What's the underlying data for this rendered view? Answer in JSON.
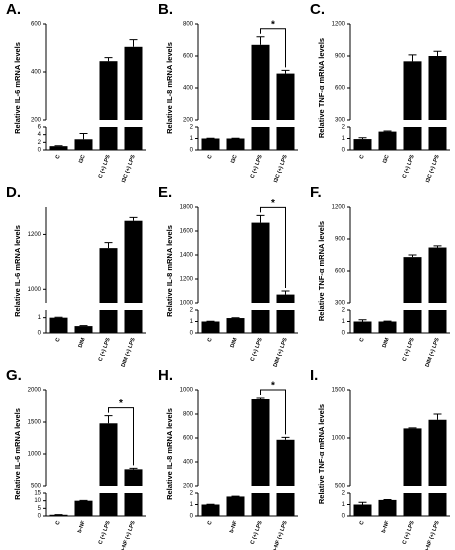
{
  "chart_data": [
    {
      "type": "bar",
      "label": "A.",
      "y_label": "Relative IL-6 mRNA levels",
      "categories": [
        "C",
        "I3C",
        "C (+) LPS",
        "I3C (+) LPS"
      ],
      "values": [
        1,
        2.8,
        445,
        505
      ],
      "errors": [
        0.1,
        1.5,
        15,
        30
      ],
      "ylim_lower": [
        0,
        6
      ],
      "yticks_lower": [
        0,
        2,
        4,
        6
      ],
      "ylim_upper": [
        200,
        600
      ],
      "yticks_upper": [
        200,
        400,
        600
      ],
      "color": "#000000"
    },
    {
      "type": "bar",
      "label": "B.",
      "y_label": "Relative IL-8 mRNA levels",
      "categories": [
        "C",
        "I3C",
        "C (+) LPS",
        "I3C (+) LPS"
      ],
      "values": [
        1,
        1,
        670,
        490
      ],
      "errors": [
        0.02,
        0.02,
        50,
        20
      ],
      "ylim_lower": [
        0,
        2
      ],
      "yticks_lower": [
        0,
        1,
        2
      ],
      "ylim_upper": [
        200,
        800
      ],
      "yticks_upper": [
        200,
        400,
        600,
        800
      ],
      "annotation": "*",
      "color": "#000000"
    },
    {
      "type": "bar",
      "label": "C.",
      "y_label": "Relative TNF-α mRNA levels",
      "categories": [
        "C",
        "I3C",
        "C (+) LPS",
        "I3C (+) LPS"
      ],
      "values": [
        0.95,
        1.6,
        850,
        900
      ],
      "errors": [
        0.12,
        0.05,
        60,
        45
      ],
      "ylim_lower": [
        0,
        2
      ],
      "yticks_lower": [
        0,
        1,
        2
      ],
      "ylim_upper": [
        300,
        1200
      ],
      "yticks_upper": [
        300,
        600,
        900,
        1200
      ],
      "color": "#000000"
    },
    {
      "type": "bar",
      "label": "D.",
      "y_label": "Relative IL-6 mRNA levels",
      "categories": [
        "C",
        "DIM",
        "C (+) LPS",
        "DIM (+) LPS"
      ],
      "values": [
        1,
        0.45,
        1150,
        1250
      ],
      "errors": [
        0.03,
        0.03,
        20,
        12
      ],
      "ylim_lower": [
        0,
        1.5
      ],
      "yticks_lower": [
        0,
        1
      ],
      "ylim_upper": [
        950,
        1300
      ],
      "yticks_upper": [
        1000,
        1200
      ],
      "color": "#000000"
    },
    {
      "type": "bar",
      "label": "E.",
      "y_label": "Relative IL-8 mRNA levels",
      "categories": [
        "C",
        "DIM",
        "C (+) LPS",
        "DIM (+) LPS"
      ],
      "values": [
        1,
        1.3,
        1670,
        1070
      ],
      "errors": [
        0.02,
        0.03,
        60,
        30
      ],
      "ylim_lower": [
        0,
        2
      ],
      "yticks_lower": [
        0,
        1,
        2
      ],
      "ylim_upper": [
        1000,
        1800
      ],
      "yticks_upper": [
        1000,
        1200,
        1400,
        1600,
        1800
      ],
      "annotation": "*",
      "color": "#000000"
    },
    {
      "type": "bar",
      "label": "F.",
      "y_label": "Relative TNF-α mRNA levels",
      "categories": [
        "C",
        "DIM",
        "C (+) LPS",
        "DIM (+) LPS"
      ],
      "values": [
        1,
        1,
        730,
        820
      ],
      "errors": [
        0.15,
        0.03,
        20,
        15
      ],
      "ylim_lower": [
        0,
        2
      ],
      "yticks_lower": [
        0,
        1,
        2
      ],
      "ylim_upper": [
        300,
        1200
      ],
      "yticks_upper": [
        300,
        600,
        900,
        1200
      ],
      "color": "#000000"
    },
    {
      "type": "bar",
      "label": "G.",
      "y_label": "Relative IL-6 mRNA levels",
      "categories": [
        "C",
        "b-NF",
        "C (+) LPS",
        "b-NF (+) LPS"
      ],
      "values": [
        0.8,
        10,
        1480,
        760
      ],
      "errors": [
        0.1,
        0.2,
        120,
        15
      ],
      "ylim_lower": [
        0,
        15
      ],
      "yticks_lower": [
        0,
        5,
        10,
        15
      ],
      "ylim_upper": [
        500,
        2000
      ],
      "yticks_upper": [
        500,
        1000,
        1500,
        2000
      ],
      "annotation": "*",
      "color": "#000000"
    },
    {
      "type": "bar",
      "label": "H.",
      "y_label": "Relative IL-8 mRNA levels",
      "categories": [
        "C",
        "b-NF",
        "C (+) LPS",
        "b-NF (+) LPS"
      ],
      "values": [
        1,
        1.7,
        925,
        585
      ],
      "errors": [
        0.02,
        0.03,
        8,
        20
      ],
      "ylim_lower": [
        0,
        2
      ],
      "yticks_lower": [
        0,
        1,
        2
      ],
      "ylim_upper": [
        200,
        1000
      ],
      "yticks_upper": [
        200,
        400,
        600,
        800,
        1000
      ],
      "annotation": "*",
      "color": "#000000"
    },
    {
      "type": "bar",
      "label": "I.",
      "y_label": "Relative TNF-α mRNA levels",
      "categories": [
        "C",
        "b-NF",
        "C (+) LPS",
        "b-NF (+) LPS"
      ],
      "values": [
        1,
        1.4,
        1100,
        1190
      ],
      "errors": [
        0.2,
        0.03,
        5,
        60
      ],
      "ylim_lower": [
        0,
        2
      ],
      "yticks_lower": [
        0,
        1,
        2
      ],
      "ylim_upper": [
        500,
        1500
      ],
      "yticks_upper": [
        500,
        1000,
        1500
      ],
      "color": "#000000"
    }
  ]
}
